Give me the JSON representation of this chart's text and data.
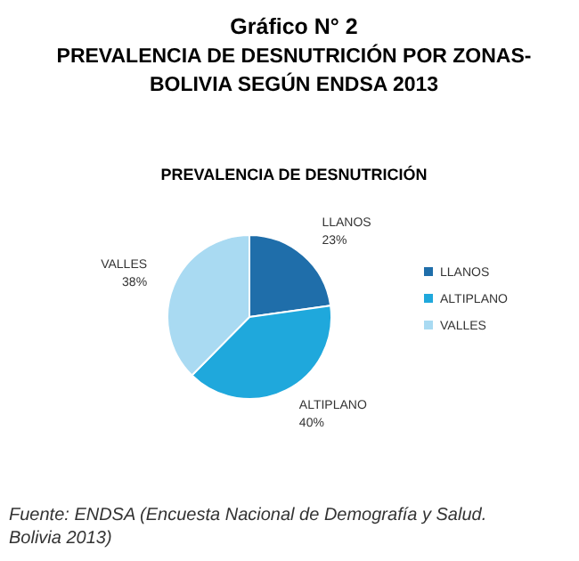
{
  "chart_data": {
    "type": "pie",
    "title": "Gráfico N° 2",
    "subtitle": "PREVALENCIA DE DESNUTRICIÓN POR ZONAS-BOLIVIA SEGÚN ENDSA 2013",
    "categories": [
      "LLANOS",
      "ALTIPLANO",
      "VALLES"
    ],
    "values": [
      23,
      40,
      38
    ],
    "colors": [
      "#1f6eaa",
      "#1fa8dc",
      "#a9daf2"
    ],
    "value_labels": [
      "23%",
      "40%",
      "38%"
    ],
    "legend": "right",
    "annotations": [
      "PREVALENCIA DE DESNUTRICIÓN",
      "Fuente: ENDSA (Encuesta Nacional de Demografía y Salud. Bolivia 2013)"
    ]
  }
}
